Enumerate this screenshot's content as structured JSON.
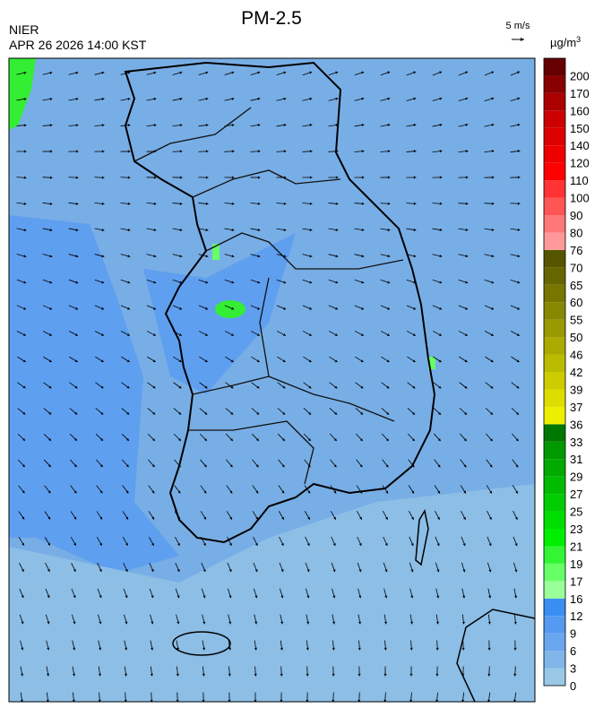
{
  "header": {
    "title": "PM-2.5",
    "agency": "NIER",
    "datetime": "APR 26 2026 14:00 KST",
    "wind_scale": "5 m/s"
  },
  "legend": {
    "unit": "µg/m",
    "unit_power": "3",
    "levels": [
      0,
      3,
      6,
      9,
      12,
      16,
      17,
      19,
      21,
      23,
      25,
      27,
      29,
      31,
      33,
      36,
      37,
      39,
      42,
      46,
      50,
      55,
      60,
      65,
      70,
      76,
      80,
      90,
      100,
      110,
      120,
      140,
      150,
      160,
      170,
      200
    ],
    "colors": [
      "#99c8e6",
      "#80b6ea",
      "#6aa6ee",
      "#559af0",
      "#3a8ef2",
      "#99ff99",
      "#66ff66",
      "#33f533",
      "#00ee00",
      "#00dd00",
      "#00cc00",
      "#00bb00",
      "#00aa00",
      "#009900",
      "#007700",
      "#eeee00",
      "#dddd00",
      "#cccc00",
      "#bbbb00",
      "#aaaa00",
      "#999900",
      "#888800",
      "#777700",
      "#666600",
      "#555500",
      "#ff9999",
      "#ff7777",
      "#ff5555",
      "#ff3333",
      "#ff0000",
      "#ee0000",
      "#dd0000",
      "#cc0000",
      "#aa0000",
      "#880000",
      "#660000"
    ]
  }
}
